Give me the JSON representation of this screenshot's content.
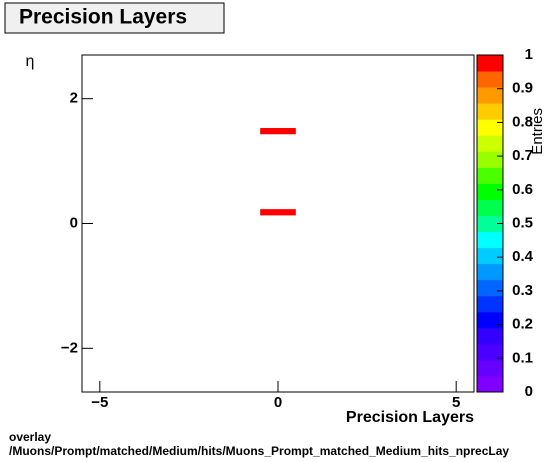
{
  "chart_data": {
    "type": "heatmap",
    "title": "Precision Layers",
    "x_label": "Precision Layers",
    "y_label": "η",
    "z_label": "Entries",
    "xlim": [
      -5.5,
      5.5
    ],
    "xticks": [
      {
        "value": -5,
        "label": "−5"
      },
      0,
      5
    ],
    "ylim": [
      -2.7,
      2.7
    ],
    "yticks": [
      {
        "value": -2,
        "label": "−2"
      },
      0,
      2
    ],
    "zlim": [
      0,
      1
    ],
    "zticks": [
      0,
      0.1,
      0.2,
      0.3,
      0.4,
      0.5,
      0.6,
      0.7,
      0.8,
      0.9,
      1
    ],
    "palette": [
      "#7f00ff",
      "#6600ff",
      "#4c00ff",
      "#3300ff",
      "#0000ff",
      "#0033ff",
      "#0066ff",
      "#0099ff",
      "#00ccff",
      "#00ffff",
      "#00ff99",
      "#00ff4c",
      "#00ff00",
      "#4cff00",
      "#99ff00",
      "#ccff00",
      "#ffff00",
      "#ffcc00",
      "#ff9900",
      "#ff6600",
      "#ff0000"
    ],
    "cells": [
      {
        "x": [
          -0.5,
          0.5
        ],
        "y": [
          1.43,
          1.53
        ],
        "value": 1
      },
      {
        "x": [
          -0.5,
          0.5
        ],
        "y": [
          0.13,
          0.23
        ],
        "value": 1
      }
    ],
    "footer": [
      "overlay",
      "/Muons/Prompt/matched/Medium/hits/Muons_Prompt_matched_Medium_hits_nprecLay"
    ]
  }
}
